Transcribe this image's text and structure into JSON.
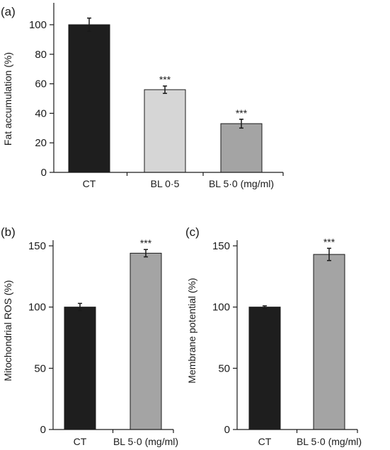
{
  "colors": {
    "axis": "#1a1a1a",
    "errorbar": "#1a1a1a",
    "black_bar": "#1e1e1e",
    "light_gray_bar": "#d6d6d6",
    "mid_gray_bar": "#a4a4a4"
  },
  "chart_data": [
    {
      "panel_label": "(a)",
      "type": "bar",
      "title": "",
      "xlabel": "",
      "ylabel": "Fat accumulation (%)",
      "categories": [
        "CT",
        "BL 0·5",
        "BL 5·0 (mg/ml)"
      ],
      "values": [
        100,
        56,
        33
      ],
      "errors": [
        4.5,
        2.5,
        3
      ],
      "significance": [
        "",
        "***",
        "***"
      ],
      "bar_colors": [
        "#1e1e1e",
        "#d6d6d6",
        "#a4a4a4"
      ],
      "ylim": [
        0,
        100
      ],
      "yticks": [
        0,
        20,
        40,
        60,
        80,
        100
      ],
      "grid": false,
      "legend": "none"
    },
    {
      "panel_label": "(b)",
      "type": "bar",
      "title": "",
      "xlabel": "",
      "ylabel": "Mitochondrial ROS (%)",
      "categories": [
        "CT",
        "BL 5·0 (mg/ml)"
      ],
      "values": [
        100,
        144
      ],
      "errors": [
        3,
        3
      ],
      "significance": [
        "",
        "***"
      ],
      "bar_colors": [
        "#1e1e1e",
        "#a4a4a4"
      ],
      "ylim": [
        0,
        150
      ],
      "yticks": [
        0,
        50,
        100,
        150
      ],
      "grid": false,
      "legend": "none"
    },
    {
      "panel_label": "(c)",
      "type": "bar",
      "title": "",
      "xlabel": "",
      "ylabel": "Membrane potential (%)",
      "categories": [
        "CT",
        "BL 5·0 (mg/ml)"
      ],
      "values": [
        100,
        143
      ],
      "errors": [
        1,
        5
      ],
      "significance": [
        "",
        "***"
      ],
      "bar_colors": [
        "#1e1e1e",
        "#a4a4a4"
      ],
      "ylim": [
        0,
        150
      ],
      "yticks": [
        0,
        50,
        100,
        150
      ],
      "grid": false,
      "legend": "none"
    }
  ]
}
